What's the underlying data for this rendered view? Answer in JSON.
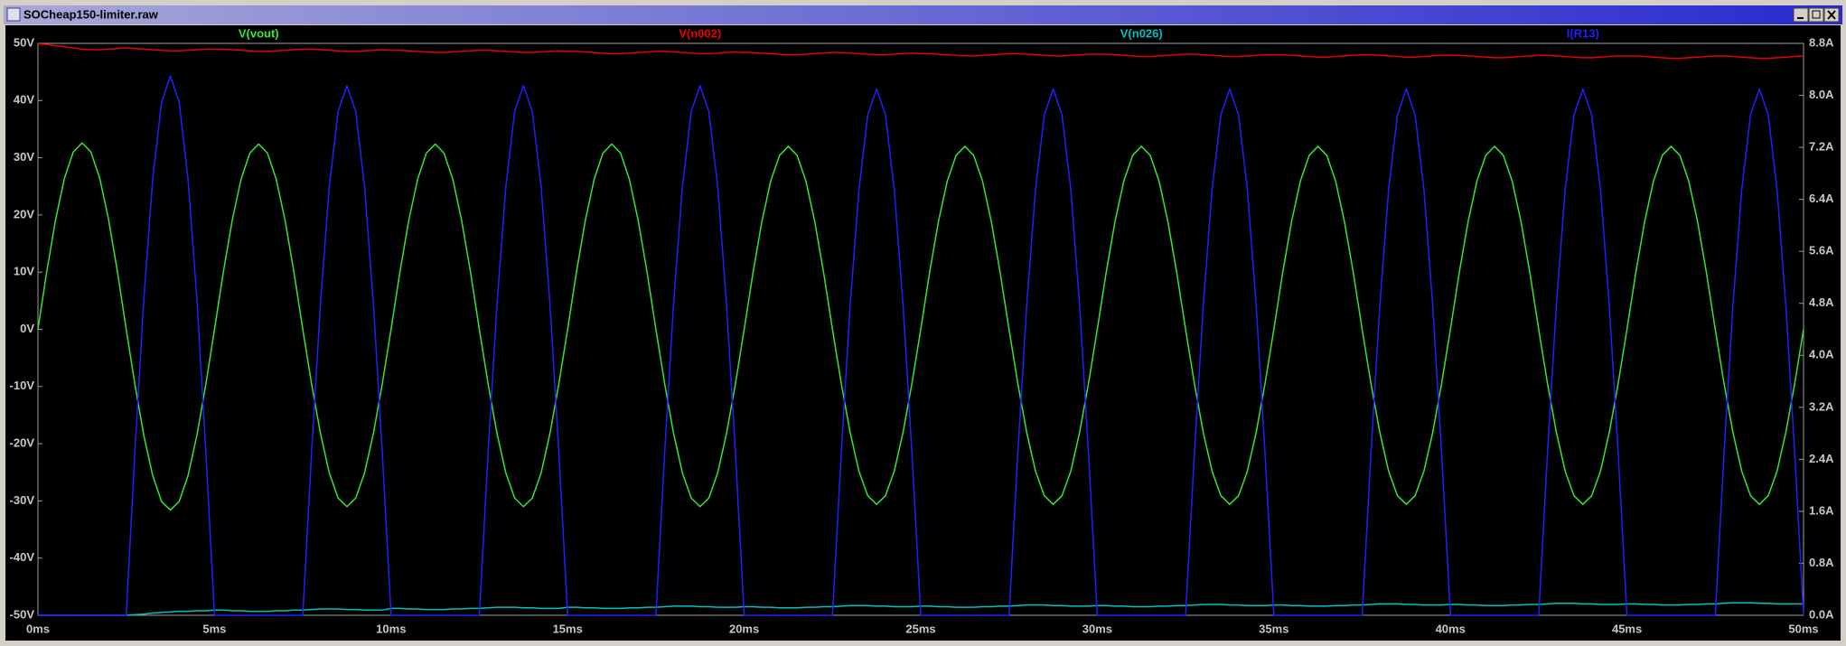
{
  "window": {
    "title": "SOCheap150-limiter.raw"
  },
  "chart_data": {
    "type": "line",
    "x": [
      0,
      0.25,
      0.5,
      0.75,
      1,
      1.25,
      1.5,
      1.75,
      2,
      2.25,
      2.5,
      2.75,
      3,
      3.25,
      3.5,
      3.75,
      4,
      4.25,
      4.5,
      4.75,
      5,
      5.25,
      5.5,
      5.75,
      6,
      6.25,
      6.5,
      6.75,
      7,
      7.25,
      7.5,
      7.75,
      8,
      8.25,
      8.5,
      8.75,
      9,
      9.25,
      9.5,
      9.75,
      10,
      10.25,
      10.5,
      10.75,
      11,
      11.25,
      11.5,
      11.75,
      12,
      12.25,
      12.5,
      12.75,
      13,
      13.25,
      13.5,
      13.75,
      14,
      14.25,
      14.5,
      14.75,
      15,
      15.25,
      15.5,
      15.75,
      16,
      16.25,
      16.5,
      16.75,
      17,
      17.25,
      17.5,
      17.75,
      18,
      18.25,
      18.5,
      18.75,
      19,
      19.25,
      19.5,
      19.75,
      20,
      20.25,
      20.5,
      20.75,
      21,
      21.25,
      21.5,
      21.75,
      22,
      22.25,
      22.5,
      22.75,
      23,
      23.25,
      23.5,
      23.75,
      24,
      24.25,
      24.5,
      24.75,
      25,
      25.25,
      25.5,
      25.75,
      26,
      26.25,
      26.5,
      26.75,
      27,
      27.25,
      27.5,
      27.75,
      28,
      28.25,
      28.5,
      28.75,
      29,
      29.25,
      29.5,
      29.75,
      30,
      30.25,
      30.5,
      30.75,
      31,
      31.25,
      31.5,
      31.75,
      32,
      32.25,
      32.5,
      32.75,
      33,
      33.25,
      33.5,
      33.75,
      34,
      34.25,
      34.5,
      34.75,
      35,
      35.25,
      35.5,
      35.75,
      36,
      36.25,
      36.5,
      36.75,
      37,
      37.25,
      37.5,
      37.75,
      38,
      38.25,
      38.5,
      38.75,
      39,
      39.25,
      39.5,
      39.75,
      40,
      40.25,
      40.5,
      40.75,
      41,
      41.25,
      41.5,
      41.75,
      42,
      42.25,
      42.5,
      42.75,
      43,
      43.25,
      43.5,
      43.75,
      44,
      44.25,
      44.5,
      44.75,
      45,
      45.25,
      45.5,
      45.75,
      46,
      46.25,
      46.5,
      46.75,
      47,
      47.25,
      47.5,
      47.75,
      48,
      48.25,
      48.5,
      48.75,
      49,
      49.25,
      49.5,
      49.75,
      50
    ],
    "series": [
      {
        "name": "V(vout)",
        "color": "#33e633",
        "axis": "y",
        "values": [
          0,
          10.1,
          19.2,
          26.4,
          31.0,
          32.6,
          31.0,
          26.4,
          19.2,
          10.1,
          0,
          -9.8,
          -18.6,
          -25.6,
          -30.1,
          -31.6,
          -30.1,
          -25.6,
          -18.6,
          -9.8,
          0,
          10.0,
          19.0,
          26.2,
          30.8,
          32.4,
          30.8,
          26.2,
          19.0,
          10.0,
          0,
          -9.6,
          -18.2,
          -25.1,
          -29.5,
          -31.0,
          -29.5,
          -25.1,
          -18.2,
          -9.6,
          0,
          10.0,
          19.0,
          26.2,
          30.8,
          32.4,
          30.8,
          26.2,
          19.0,
          10.0,
          0,
          -9.6,
          -18.2,
          -25.1,
          -29.5,
          -31.0,
          -29.5,
          -25.1,
          -18.2,
          -9.6,
          0,
          10.0,
          19.0,
          26.2,
          30.8,
          32.4,
          30.8,
          26.2,
          19.0,
          10.0,
          0,
          -9.6,
          -18.2,
          -25.1,
          -29.5,
          -31.0,
          -29.5,
          -25.1,
          -18.2,
          -9.6,
          0,
          9.9,
          18.8,
          25.9,
          30.4,
          32.0,
          30.4,
          25.9,
          18.8,
          9.9,
          0,
          -9.5,
          -18.0,
          -24.8,
          -29.1,
          -30.6,
          -29.1,
          -24.8,
          -18.0,
          -9.5,
          0,
          9.9,
          18.8,
          25.9,
          30.4,
          32.0,
          30.4,
          25.9,
          18.8,
          9.9,
          0,
          -9.5,
          -18.0,
          -24.8,
          -29.1,
          -30.6,
          -29.1,
          -24.8,
          -18.0,
          -9.5,
          0,
          9.9,
          18.8,
          25.9,
          30.4,
          32.0,
          30.4,
          25.9,
          18.8,
          9.9,
          0,
          -9.5,
          -18.0,
          -24.8,
          -29.1,
          -30.6,
          -29.1,
          -24.8,
          -18.0,
          -9.5,
          0,
          9.9,
          18.8,
          25.9,
          30.4,
          32.0,
          30.4,
          25.9,
          18.8,
          9.9,
          0,
          -9.5,
          -18.0,
          -24.8,
          -29.1,
          -30.6,
          -29.1,
          -24.8,
          -18.0,
          -9.5,
          0,
          9.9,
          18.8,
          25.9,
          30.4,
          32.0,
          30.4,
          25.9,
          18.8,
          9.9,
          0,
          -9.5,
          -18.0,
          -24.8,
          -29.1,
          -30.6,
          -29.1,
          -24.8,
          -18.0,
          -9.5,
          0,
          9.9,
          18.8,
          25.9,
          30.4,
          32.0,
          30.4,
          25.9,
          18.8,
          9.9,
          0,
          -9.5,
          -18.0,
          -24.8,
          -29.1,
          -30.6,
          -29.1,
          -24.8,
          -18.0,
          -9.5,
          0
        ]
      },
      {
        "name": "V(n002)",
        "color": "#e60000",
        "axis": "y",
        "values": [
          49.9,
          49.8,
          49.6,
          49.4,
          49.2,
          49.0,
          48.9,
          48.9,
          49.0,
          49.1,
          49.2,
          49.1,
          49.0,
          48.9,
          48.8,
          48.7,
          48.7,
          48.8,
          48.9,
          49.0,
          49.0,
          49.0,
          48.9,
          48.8,
          48.7,
          48.6,
          48.6,
          48.7,
          48.8,
          48.9,
          49.0,
          49.0,
          48.9,
          48.8,
          48.7,
          48.6,
          48.6,
          48.7,
          48.8,
          48.9,
          48.8,
          48.8,
          48.7,
          48.6,
          48.5,
          48.4,
          48.4,
          48.5,
          48.6,
          48.7,
          48.8,
          48.8,
          48.7,
          48.6,
          48.5,
          48.4,
          48.4,
          48.5,
          48.6,
          48.7,
          48.6,
          48.6,
          48.5,
          48.4,
          48.3,
          48.2,
          48.2,
          48.3,
          48.4,
          48.5,
          48.6,
          48.6,
          48.5,
          48.4,
          48.3,
          48.2,
          48.2,
          48.3,
          48.4,
          48.5,
          48.4,
          48.4,
          48.3,
          48.2,
          48.1,
          48.0,
          48.0,
          48.1,
          48.2,
          48.3,
          48.4,
          48.4,
          48.3,
          48.2,
          48.1,
          48.0,
          48.0,
          48.1,
          48.2,
          48.3,
          48.2,
          48.2,
          48.1,
          48.0,
          47.9,
          47.8,
          47.8,
          47.9,
          48.0,
          48.1,
          48.2,
          48.2,
          48.1,
          48.0,
          47.9,
          47.8,
          47.8,
          47.9,
          48.0,
          48.1,
          48.1,
          48.1,
          48.0,
          47.9,
          47.8,
          47.7,
          47.7,
          47.8,
          47.9,
          48.0,
          48.1,
          48.1,
          48.0,
          47.9,
          47.8,
          47.7,
          47.7,
          47.8,
          47.9,
          48.0,
          48.0,
          48.0,
          47.9,
          47.8,
          47.7,
          47.6,
          47.6,
          47.7,
          47.8,
          47.9,
          48.0,
          48.0,
          47.9,
          47.8,
          47.7,
          47.6,
          47.6,
          47.7,
          47.8,
          47.9,
          47.9,
          47.9,
          47.8,
          47.7,
          47.6,
          47.5,
          47.5,
          47.6,
          47.7,
          47.8,
          47.9,
          47.9,
          47.8,
          47.7,
          47.6,
          47.5,
          47.5,
          47.6,
          47.7,
          47.8,
          47.8,
          47.8,
          47.7,
          47.6,
          47.5,
          47.4,
          47.4,
          47.5,
          47.6,
          47.7,
          47.8,
          47.8,
          47.7,
          47.6,
          47.5,
          47.4,
          47.4,
          47.5,
          47.6,
          47.7,
          47.8
        ]
      },
      {
        "name": "V(n026)",
        "color": "#00c0c0",
        "axis": "y",
        "values": [
          -50,
          -50,
          -50,
          -50,
          -50,
          -50,
          -50,
          -50,
          -50,
          -50,
          -50,
          -49.9,
          -49.8,
          -49.6,
          -49.5,
          -49.4,
          -49.3,
          -49.3,
          -49.2,
          -49.2,
          -49.1,
          -49.1,
          -49.2,
          -49.2,
          -49.3,
          -49.3,
          -49.3,
          -49.2,
          -49.2,
          -49.1,
          -49.1,
          -49.0,
          -48.9,
          -48.9,
          -48.9,
          -49.0,
          -49.0,
          -49.1,
          -49.1,
          -49.1,
          -48.8,
          -48.8,
          -48.9,
          -48.9,
          -49.0,
          -49.0,
          -49.0,
          -48.9,
          -48.9,
          -48.8,
          -48.8,
          -48.7,
          -48.6,
          -48.6,
          -48.6,
          -48.7,
          -48.7,
          -48.8,
          -48.8,
          -48.8,
          -48.6,
          -48.6,
          -48.7,
          -48.7,
          -48.8,
          -48.8,
          -48.8,
          -48.7,
          -48.7,
          -48.6,
          -48.6,
          -48.5,
          -48.4,
          -48.4,
          -48.4,
          -48.5,
          -48.5,
          -48.6,
          -48.6,
          -48.6,
          -48.5,
          -48.5,
          -48.6,
          -48.6,
          -48.7,
          -48.7,
          -48.7,
          -48.6,
          -48.6,
          -48.5,
          -48.5,
          -48.4,
          -48.3,
          -48.3,
          -48.3,
          -48.4,
          -48.4,
          -48.5,
          -48.5,
          -48.5,
          -48.4,
          -48.4,
          -48.5,
          -48.5,
          -48.6,
          -48.6,
          -48.6,
          -48.5,
          -48.5,
          -48.4,
          -48.4,
          -48.3,
          -48.2,
          -48.2,
          -48.2,
          -48.3,
          -48.3,
          -48.4,
          -48.4,
          -48.4,
          -48.3,
          -48.3,
          -48.4,
          -48.4,
          -48.5,
          -48.5,
          -48.5,
          -48.4,
          -48.4,
          -48.3,
          -48.3,
          -48.2,
          -48.1,
          -48.1,
          -48.1,
          -48.2,
          -48.2,
          -48.3,
          -48.3,
          -48.3,
          -48.2,
          -48.2,
          -48.3,
          -48.3,
          -48.4,
          -48.4,
          -48.4,
          -48.3,
          -48.3,
          -48.2,
          -48.2,
          -48.1,
          -48.0,
          -48.0,
          -48.0,
          -48.1,
          -48.1,
          -48.2,
          -48.2,
          -48.2,
          -48.1,
          -48.1,
          -48.2,
          -48.2,
          -48.3,
          -48.3,
          -48.3,
          -48.2,
          -48.2,
          -48.1,
          -48.1,
          -48.0,
          -47.9,
          -47.9,
          -47.9,
          -48.0,
          -48.0,
          -48.1,
          -48.1,
          -48.1,
          -48.0,
          -48.0,
          -48.1,
          -48.1,
          -48.2,
          -48.2,
          -48.2,
          -48.1,
          -48.1,
          -48.0,
          -48.0,
          -47.9,
          -47.8,
          -47.8,
          -47.8,
          -47.9,
          -47.9,
          -48.0,
          -48.0,
          -48.0,
          -48.0
        ]
      },
      {
        "name": "I(R13)",
        "color": "#2020ff",
        "axis": "y2",
        "values": [
          0,
          0,
          0,
          0,
          0,
          0,
          0,
          0,
          0,
          0,
          0,
          2.56,
          4.88,
          6.71,
          7.89,
          8.3,
          7.89,
          6.71,
          4.88,
          2.56,
          0,
          0,
          0,
          0,
          0,
          0,
          0,
          0,
          0,
          0,
          0,
          2.52,
          4.79,
          6.59,
          7.75,
          8.15,
          7.75,
          6.59,
          4.79,
          2.52,
          0,
          0,
          0,
          0,
          0,
          0,
          0,
          0,
          0,
          0,
          0,
          2.52,
          4.79,
          6.59,
          7.75,
          8.15,
          7.75,
          6.59,
          4.79,
          2.52,
          0,
          0,
          0,
          0,
          0,
          0,
          0,
          0,
          0,
          0,
          0,
          2.52,
          4.79,
          6.59,
          7.75,
          8.15,
          7.75,
          6.59,
          4.79,
          2.52,
          0,
          0,
          0,
          0,
          0,
          0,
          0,
          0,
          0,
          0,
          0,
          2.5,
          4.76,
          6.55,
          7.7,
          8.1,
          7.7,
          6.55,
          4.76,
          2.5,
          0,
          0,
          0,
          0,
          0,
          0,
          0,
          0,
          0,
          0,
          0,
          2.5,
          4.76,
          6.55,
          7.7,
          8.1,
          7.7,
          6.55,
          4.76,
          2.5,
          0,
          0,
          0,
          0,
          0,
          0,
          0,
          0,
          0,
          0,
          0,
          2.5,
          4.76,
          6.55,
          7.7,
          8.1,
          7.7,
          6.55,
          4.76,
          2.5,
          0,
          0,
          0,
          0,
          0,
          0,
          0,
          0,
          0,
          0,
          0,
          2.5,
          4.76,
          6.55,
          7.7,
          8.1,
          7.7,
          6.55,
          4.76,
          2.5,
          0,
          0,
          0,
          0,
          0,
          0,
          0,
          0,
          0,
          0,
          0,
          2.5,
          4.76,
          6.55,
          7.7,
          8.1,
          7.7,
          6.55,
          4.76,
          2.5,
          0,
          0,
          0,
          0,
          0,
          0,
          0,
          0,
          0,
          0,
          0,
          2.5,
          4.76,
          6.55,
          7.7,
          8.1,
          7.7,
          6.55,
          4.76,
          2.5,
          0
        ]
      }
    ],
    "xlim": [
      0,
      50
    ],
    "xticks": [
      {
        "value": 0,
        "label": "0ms"
      },
      {
        "value": 5,
        "label": "5ms"
      },
      {
        "value": 10,
        "label": "10ms"
      },
      {
        "value": 15,
        "label": "15ms"
      },
      {
        "value": 20,
        "label": "20ms"
      },
      {
        "value": 25,
        "label": "25ms"
      },
      {
        "value": 30,
        "label": "30ms"
      },
      {
        "value": 35,
        "label": "35ms"
      },
      {
        "value": 40,
        "label": "40ms"
      },
      {
        "value": 45,
        "label": "45ms"
      },
      {
        "value": 50,
        "label": "50ms"
      }
    ],
    "ylim": [
      -50,
      50
    ],
    "yticks": [
      {
        "value": -50,
        "label": "-50V"
      },
      {
        "value": -40,
        "label": "-40V"
      },
      {
        "value": -30,
        "label": "-30V"
      },
      {
        "value": -20,
        "label": "-20V"
      },
      {
        "value": -10,
        "label": "-10V"
      },
      {
        "value": 0,
        "label": "0V"
      },
      {
        "value": 10,
        "label": "10V"
      },
      {
        "value": 20,
        "label": "20V"
      },
      {
        "value": 30,
        "label": "30V"
      },
      {
        "value": 40,
        "label": "40V"
      },
      {
        "value": 50,
        "label": "50V"
      }
    ],
    "y2lim": [
      0,
      8.8
    ],
    "y2ticks": [
      {
        "value": 0,
        "label": "0.0A"
      },
      {
        "value": 0.8,
        "label": "0.8A"
      },
      {
        "value": 1.6,
        "label": "1.6A"
      },
      {
        "value": 2.4,
        "label": "2.4A"
      },
      {
        "value": 3.2,
        "label": "3.2A"
      },
      {
        "value": 4,
        "label": "4.0A"
      },
      {
        "value": 4.8,
        "label": "4.8A"
      },
      {
        "value": 5.6,
        "label": "5.6A"
      },
      {
        "value": 6.4,
        "label": "6.4A"
      },
      {
        "value": 7.2,
        "label": "7.2A"
      },
      {
        "value": 8,
        "label": "8.0A"
      },
      {
        "value": 8.8,
        "label": "8.8A"
      }
    ],
    "grid": false
  }
}
